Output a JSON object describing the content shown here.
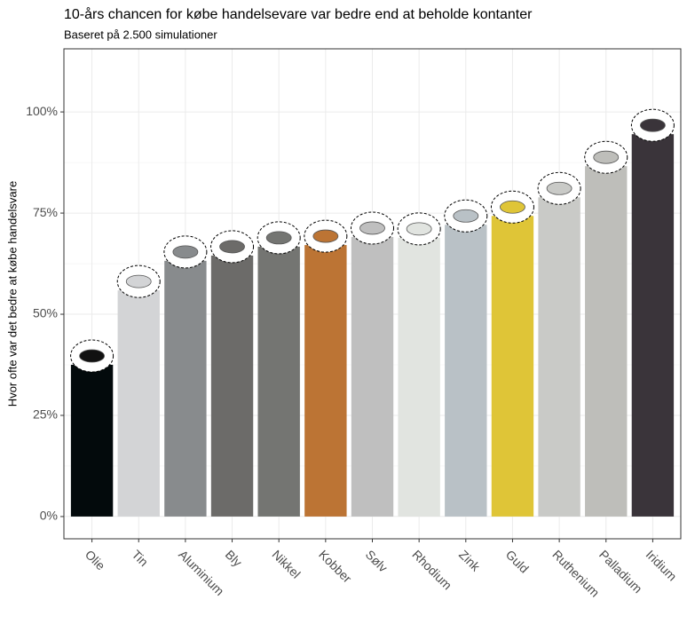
{
  "chart_data": {
    "type": "bar",
    "title": "10-års chancen for købe handelsevare var bedre end at beholde kontanter",
    "subtitle": "Baseret på 2.500 simulationer",
    "y_label": "Hvor ofte var det bedre at købe handelsvare",
    "categories": [
      "Olie",
      "Tin",
      "Aluminium",
      "Bly",
      "Nikkel",
      "Kobber",
      "Sølv",
      "Rhodium",
      "Zink",
      "Guld",
      "Ruthenium",
      "Palladium",
      "Iridium"
    ],
    "values": [
      37.5,
      55.9,
      63.2,
      64.5,
      66.7,
      67.1,
      69.1,
      68.9,
      72.1,
      74.3,
      78.9,
      86.6,
      94.5
    ],
    "colors": [
      "#030a0c",
      "#d3d4d6",
      "#888b8d",
      "#6c6b69",
      "#747572",
      "#bc7434",
      "#bfbfbf",
      "#e1e4e0",
      "#b9c1c6",
      "#dfc537",
      "#c9cac7",
      "#bebeba",
      "#3a343a"
    ],
    "ylim": [
      -5.5,
      115.6
    ],
    "yticks": [
      {
        "value": 0,
        "label": "0%"
      },
      {
        "value": 25,
        "label": "25%"
      },
      {
        "value": 50,
        "label": "50%"
      },
      {
        "value": 75,
        "label": "75%"
      },
      {
        "value": 100,
        "label": "100%"
      }
    ],
    "grid": true
  }
}
